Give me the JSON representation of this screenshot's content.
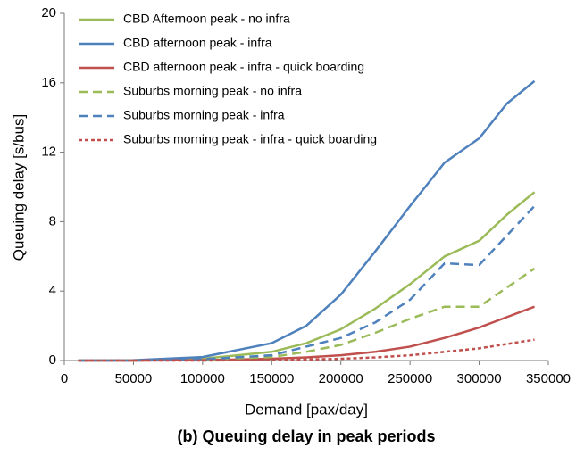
{
  "chart_data": {
    "type": "line",
    "title": "(b) Queuing delay in peak periods",
    "xlabel": "Demand [pax/day]",
    "ylabel": "Queuing delay [s/bus]",
    "x": [
      10000,
      50000,
      100000,
      150000,
      175000,
      200000,
      225000,
      250000,
      275000,
      300000,
      320000,
      340000
    ],
    "series": [
      {
        "name": "CBD Afternoon peak - no infra",
        "color": "#9bbb59",
        "dash": "solid",
        "values": [
          0,
          0,
          0.1,
          0.5,
          1.0,
          1.8,
          3.0,
          4.4,
          6.0,
          6.9,
          8.4,
          9.7
        ]
      },
      {
        "name": "CBD afternoon peak - infra",
        "color": "#4f81bd",
        "dash": "solid",
        "values": [
          0,
          0.02,
          0.2,
          1.0,
          2.0,
          3.8,
          6.3,
          8.9,
          11.4,
          12.8,
          14.8,
          16.1
        ]
      },
      {
        "name": "CBD afternoon peak - infra - quick boarding",
        "color": "#c0504d",
        "dash": "solid",
        "values": [
          0,
          0,
          0.02,
          0.1,
          0.18,
          0.3,
          0.5,
          0.8,
          1.3,
          1.9,
          2.5,
          3.1
        ]
      },
      {
        "name": "Suburbs morning peak  - no infra",
        "color": "#9bbb59",
        "dash": "dashed",
        "values": [
          0,
          0,
          0.05,
          0.2,
          0.5,
          0.9,
          1.6,
          2.4,
          3.1,
          3.1,
          4.2,
          5.3
        ]
      },
      {
        "name": "Suburbs morning peak  - infra",
        "color": "#4f81bd",
        "dash": "dashed",
        "values": [
          0,
          0,
          0.07,
          0.3,
          0.8,
          1.3,
          2.2,
          3.5,
          5.6,
          5.5,
          7.2,
          8.9
        ]
      },
      {
        "name": "Suburbs morning peak  - infra - quick boarding",
        "color": "#c0504d",
        "dash": "dotted",
        "values": [
          0,
          0,
          0,
          0.03,
          0.06,
          0.1,
          0.18,
          0.3,
          0.5,
          0.7,
          0.95,
          1.2
        ]
      }
    ],
    "xlim": [
      0,
      350000
    ],
    "xticks": [
      0,
      50000,
      100000,
      150000,
      200000,
      250000,
      300000,
      350000
    ],
    "ylim": [
      0,
      20
    ],
    "yticks": [
      0,
      4,
      8,
      12,
      16,
      20
    ],
    "grid": false,
    "legend": "upper left"
  }
}
